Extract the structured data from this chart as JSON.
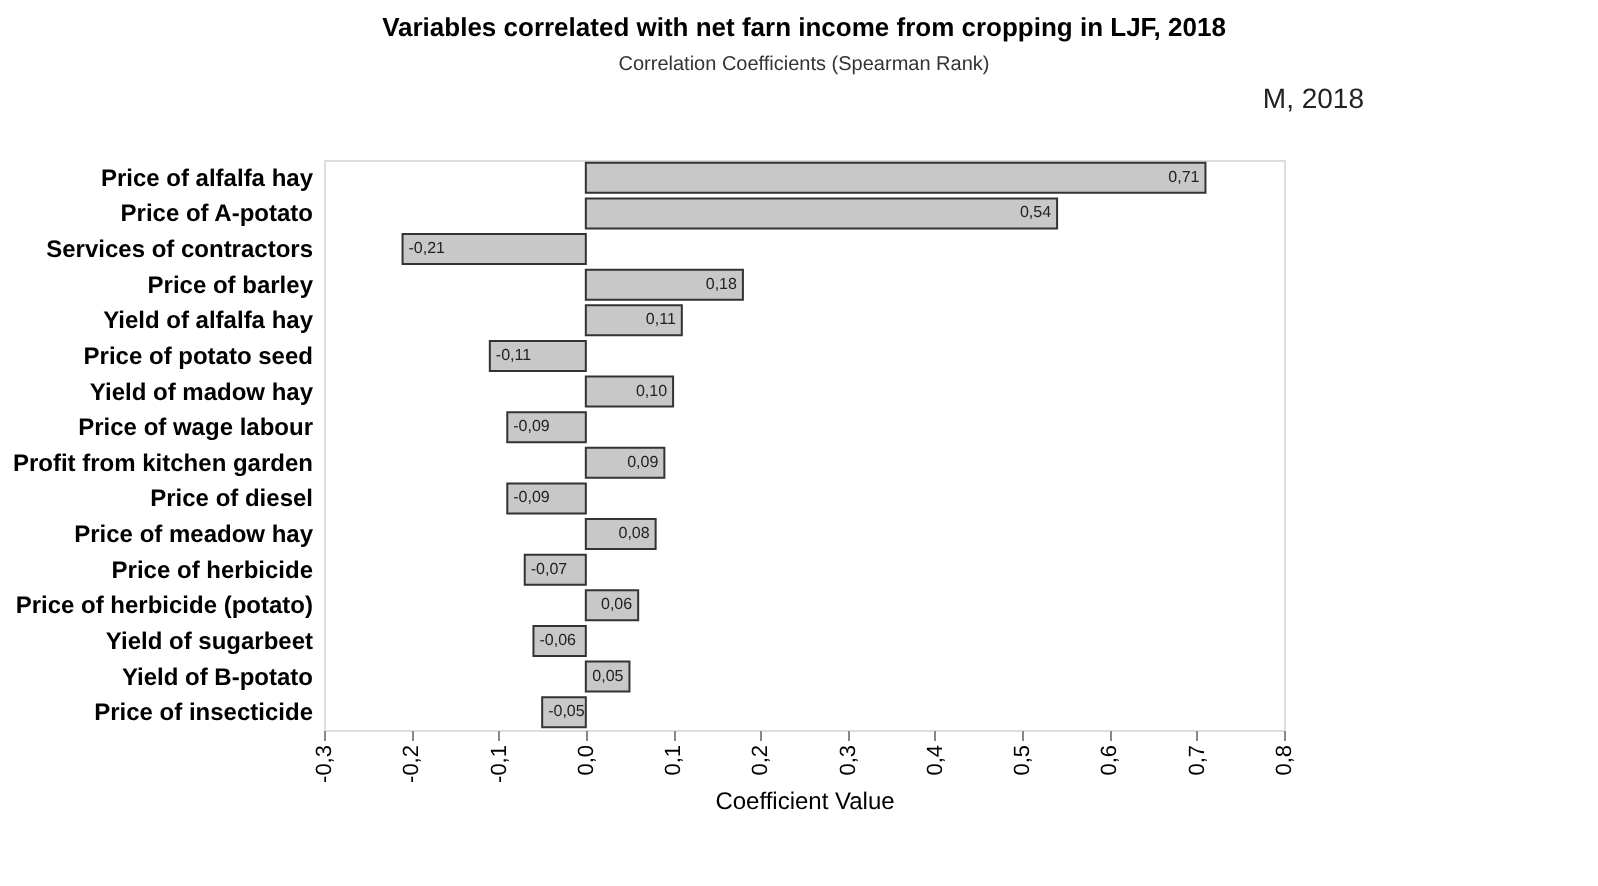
{
  "chart_data": {
    "type": "bar",
    "orientation": "horizontal",
    "title": "Variables correlated with net farn income from cropping in LJF, 2018",
    "subtitle": "Correlation Coefficients (Spearman Rank)",
    "xlabel": "Coefficient  Value",
    "annotations": [
      "M,  2018"
    ],
    "categories": [
      "Price of alfalfa hay",
      "Price of A-potato",
      "Services of contractors",
      "Price of barley",
      "Yield of alfalfa hay",
      "Price of potato seed",
      "Yield of madow hay",
      "Price of wage labour",
      "Profit from kitchen garden",
      "Price of diesel",
      "Price of meadow hay",
      "Price of herbicide",
      "Price of herbicide (potato)",
      "Yield of sugarbeet",
      "Yield of B-potato",
      "Price of insecticide"
    ],
    "values": [
      0.71,
      0.54,
      -0.21,
      0.18,
      0.11,
      -0.11,
      0.1,
      -0.09,
      0.09,
      -0.09,
      0.08,
      -0.07,
      0.06,
      -0.06,
      0.05,
      -0.05
    ],
    "value_labels": [
      "0,71",
      "0,54",
      "-0,21",
      "0,18",
      "0,11",
      "-0,11",
      "0,10",
      "-0,09",
      "0,09",
      "-0,09",
      "0,08",
      "-0,07",
      "0,06",
      "-0,06",
      "0,05",
      "-0,05"
    ],
    "color": "#c8c8c8",
    "xlim": [
      -0.3,
      0.8
    ],
    "xticks": [
      {
        "value": -0.3,
        "label": "-0,3"
      },
      {
        "value": -0.2,
        "label": "-0,2"
      },
      {
        "value": -0.1,
        "label": "-0,1"
      },
      {
        "value": 0.0,
        "label": "0,0"
      },
      {
        "value": 0.1,
        "label": "0,1"
      },
      {
        "value": 0.2,
        "label": "0,2"
      },
      {
        "value": 0.3,
        "label": "0,3"
      },
      {
        "value": 0.4,
        "label": "0,4"
      },
      {
        "value": 0.5,
        "label": "0,5"
      },
      {
        "value": 0.6,
        "label": "0,6"
      },
      {
        "value": 0.7,
        "label": "0,7"
      },
      {
        "value": 0.8,
        "label": "0,8"
      }
    ],
    "grid": false
  }
}
